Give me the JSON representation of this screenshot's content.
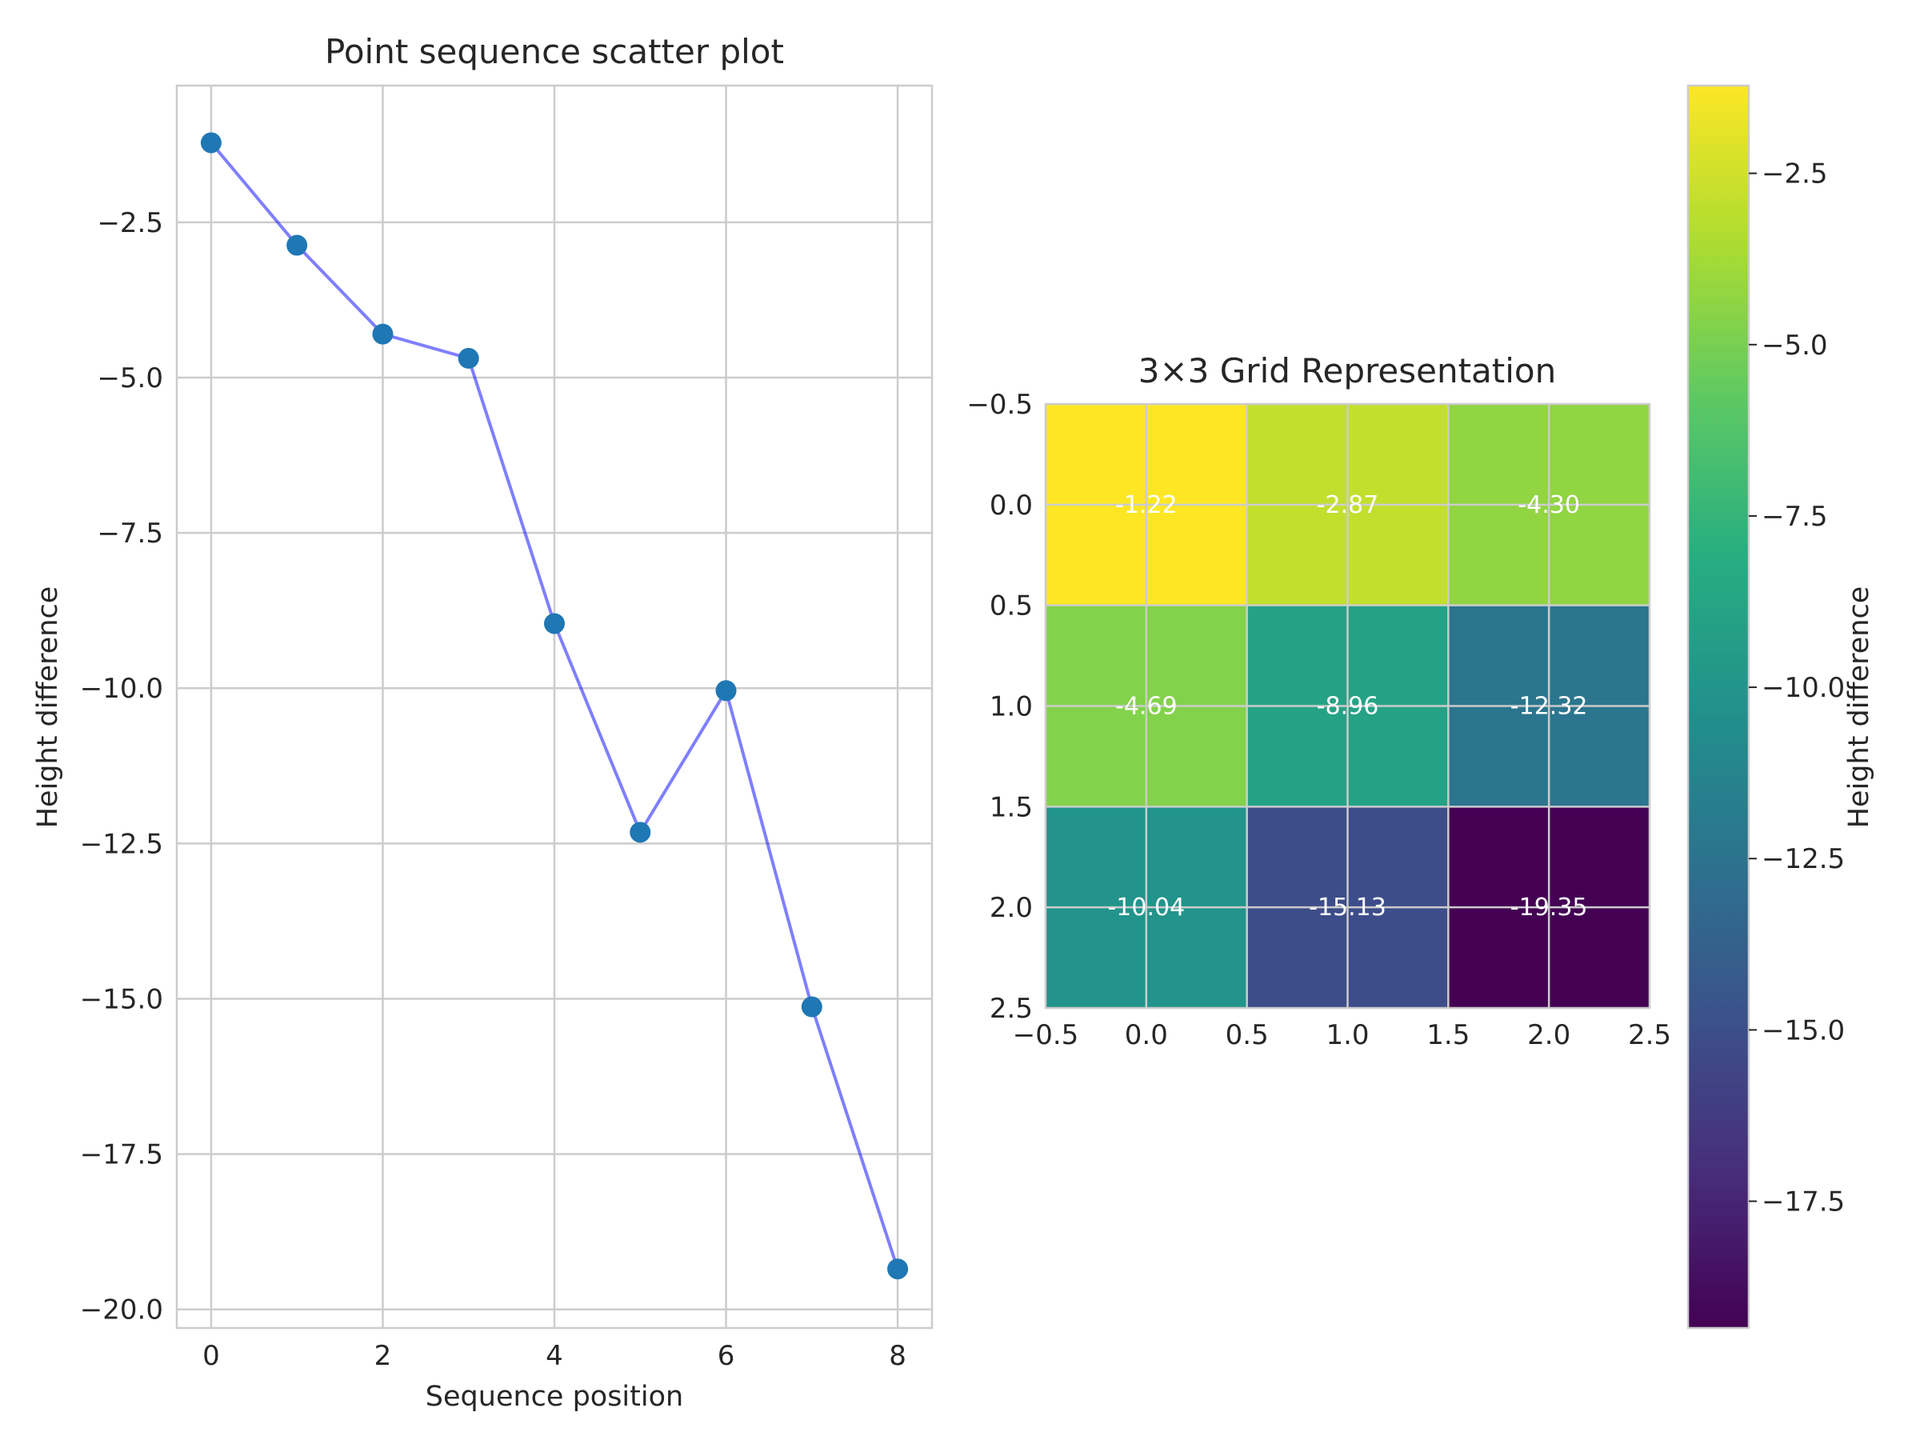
{
  "chart_data": [
    {
      "type": "line",
      "title": "Point sequence scatter plot",
      "xlabel": "Sequence position",
      "ylabel": "Height difference",
      "x": [
        0,
        1,
        2,
        3,
        4,
        5,
        6,
        7,
        8
      ],
      "y": [
        -1.22,
        -2.87,
        -4.3,
        -4.69,
        -8.96,
        -12.32,
        -10.04,
        -15.13,
        -19.35
      ],
      "xlim": [
        -0.4,
        8.4
      ],
      "ylim": [
        -20.3,
        -0.3
      ],
      "xticks": [
        0,
        2,
        4,
        6,
        8
      ],
      "xtick_labels": [
        "0",
        "2",
        "4",
        "6",
        "8"
      ],
      "yticks": [
        -2.5,
        -5.0,
        -7.5,
        -10.0,
        -12.5,
        -15.0,
        -17.5,
        -20.0
      ],
      "ytick_labels": [
        "−2.5",
        "−5.0",
        "−7.5",
        "−10.0",
        "−12.5",
        "−15.0",
        "−17.5",
        "−20.0"
      ],
      "grid": true,
      "marker_color": "#1f77b4",
      "line_color": "#0000ff"
    },
    {
      "type": "heatmap",
      "title": "3×3 Grid Representation",
      "values": [
        [
          -1.22,
          -2.87,
          -4.3
        ],
        [
          -4.69,
          -8.96,
          -12.32
        ],
        [
          -10.04,
          -15.13,
          -19.35
        ]
      ],
      "cell_labels": [
        [
          "-1.22",
          "-2.87",
          "-4.30"
        ],
        [
          "-4.69",
          "-8.96",
          "-12.32"
        ],
        [
          "-10.04",
          "-15.13",
          "-19.35"
        ]
      ],
      "xlim": [
        -0.5,
        2.5
      ],
      "ylim": [
        -0.5,
        2.5
      ],
      "xtick_labels": [
        "−0.5",
        "0.0",
        "0.5",
        "1.0",
        "1.5",
        "2.0",
        "2.5"
      ],
      "ytick_labels": [
        "−0.5",
        "0.0",
        "0.5",
        "1.0",
        "1.5",
        "2.0",
        "2.5"
      ],
      "colormap": "viridis",
      "grid": true,
      "colorbar": {
        "label": "Height difference",
        "vmin": -19.35,
        "vmax": -1.22,
        "ticks": [
          -2.5,
          -5.0,
          -7.5,
          -10.0,
          -12.5,
          -15.0,
          -17.5
        ],
        "tick_labels": [
          "−2.5",
          "−5.0",
          "−7.5",
          "−10.0",
          "−12.5",
          "−15.0",
          "−17.5"
        ]
      }
    }
  ]
}
